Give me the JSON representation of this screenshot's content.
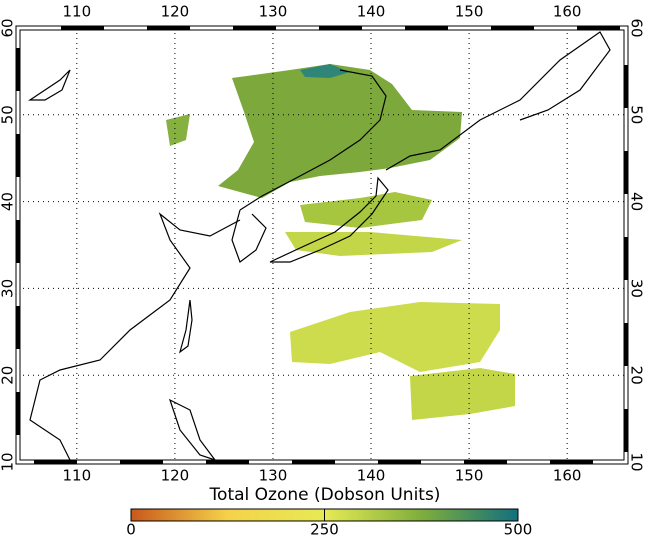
{
  "chart_data": {
    "type": "map",
    "xlim": [
      104,
      166
    ],
    "xticks": [
      110,
      120,
      130,
      140,
      150,
      160
    ],
    "ylim": [
      10,
      60
    ],
    "yticks": [
      10,
      20,
      30,
      40,
      50,
      60
    ],
    "grid": true,
    "colorbar": {
      "label": "Total Ozone (Dobson Units)",
      "lim": [
        0,
        500
      ],
      "ticks": [
        0,
        250,
        500
      ],
      "colors": [
        "#c8581a",
        "#f5d24a",
        "#e6ea55",
        "#7fae3c",
        "#12707e"
      ]
    }
  }
}
